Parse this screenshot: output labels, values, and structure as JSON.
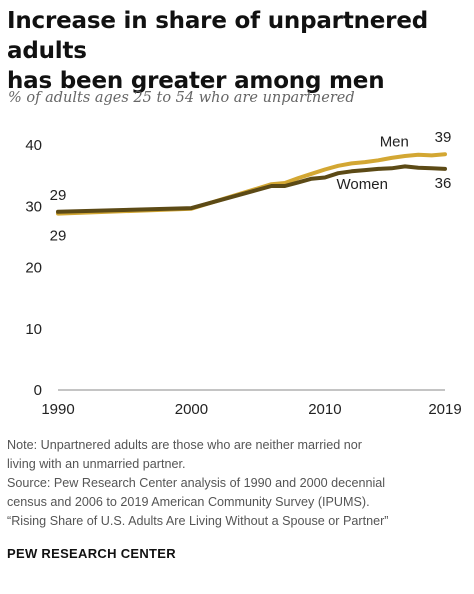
{
  "header": {
    "title_line1": "Increase in share of unpartnered adults",
    "title_line2": "has been greater among men",
    "subtitle": "% of adults ages 25 to 54 who are unpartnered"
  },
  "footer": {
    "note_line1": "Note: Unpartnered adults are those who are neither married nor",
    "note_line2": "living with an unmarried partner.",
    "source_line1": "Source: Pew Research Center analysis of 1990 and 2000 decennial",
    "source_line2": "census and 2006 to 2019 American Community Survey (IPUMS).",
    "source_line3": "“Rising Share of U.S. Adults Are Living Without a Spouse or Partner”",
    "org": "PEW RESEARCH CENTER"
  },
  "chart_data": {
    "type": "line",
    "ylim": [
      0,
      40
    ],
    "xlim": [
      1990,
      2019
    ],
    "yticks": [
      0,
      10,
      20,
      30,
      40
    ],
    "ytick_labels": [
      "0",
      "10",
      "20",
      "30",
      "40"
    ],
    "xticks": [
      1990,
      2000,
      2010,
      2019
    ],
    "xtick_labels": [
      "1990",
      "2000",
      "2010",
      "2019"
    ],
    "grid": false,
    "series": [
      {
        "name": "Men",
        "color": "#d3a733",
        "x": [
          1990,
          2000,
          2006,
          2007,
          2008,
          2009,
          2010,
          2011,
          2012,
          2013,
          2014,
          2015,
          2016,
          2017,
          2018,
          2019
        ],
        "y": [
          28.8,
          29.6,
          33.6,
          33.8,
          34.6,
          35.3,
          36.0,
          36.6,
          37.0,
          37.2,
          37.5,
          37.9,
          38.2,
          38.4,
          38.3,
          38.5
        ],
        "start_label": "29",
        "end_label": "39"
      },
      {
        "name": "Women",
        "color": "#5c4a16",
        "x": [
          1990,
          2000,
          2006,
          2007,
          2008,
          2009,
          2010,
          2011,
          2012,
          2013,
          2014,
          2015,
          2016,
          2017,
          2018,
          2019
        ],
        "y": [
          29.1,
          29.7,
          33.3,
          33.3,
          33.9,
          34.5,
          34.7,
          35.4,
          35.7,
          35.9,
          36.1,
          36.2,
          36.5,
          36.3,
          36.2,
          36.1
        ],
        "start_label": "29",
        "end_label": "36"
      }
    ]
  }
}
